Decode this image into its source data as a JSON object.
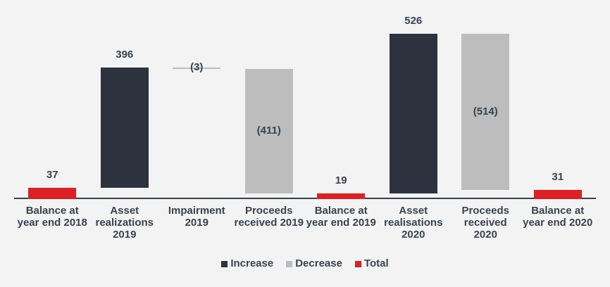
{
  "chart_data": {
    "type": "bar",
    "subtype": "waterfall",
    "title": "",
    "xlabel": "",
    "ylabel": "",
    "ylim": [
      0,
      560
    ],
    "grid": false,
    "legend_position": "bottom",
    "background": "#f2f3f2",
    "colors": {
      "increase": "#2c323e",
      "decrease": "#bdbdbd",
      "total": "#dc2126",
      "label_text": "#3a424e",
      "axis_line": "#3a3f47"
    },
    "bars": [
      {
        "category": "Balance at\nyear end 2018",
        "kind": "total",
        "value": 37,
        "display_label": "37"
      },
      {
        "category": "Asset\nrealizations\n2019",
        "kind": "increase",
        "value": 396,
        "display_label": "396"
      },
      {
        "category": "Impairment\n2019",
        "kind": "decrease",
        "value": -3,
        "display_label": "(3)"
      },
      {
        "category": "Proceeds\nreceived 2019",
        "kind": "decrease",
        "value": -411,
        "display_label": "(411)"
      },
      {
        "category": "Balance at\nyear end 2019",
        "kind": "total",
        "value": 19,
        "display_label": "19"
      },
      {
        "category": "Asset\nrealisations\n2020",
        "kind": "increase",
        "value": 526,
        "display_label": "526"
      },
      {
        "category": "Proceeds\nreceived\n2020",
        "kind": "decrease",
        "value": -514,
        "display_label": "(514)"
      },
      {
        "category": "Balance at\nyear end 2020",
        "kind": "total",
        "value": 31,
        "display_label": "31"
      }
    ],
    "legend": [
      {
        "label": "Increase",
        "color": "#2c323e"
      },
      {
        "label": "Decrease",
        "color": "#bdbdbd"
      },
      {
        "label": "Total",
        "color": "#dc2126"
      }
    ]
  }
}
